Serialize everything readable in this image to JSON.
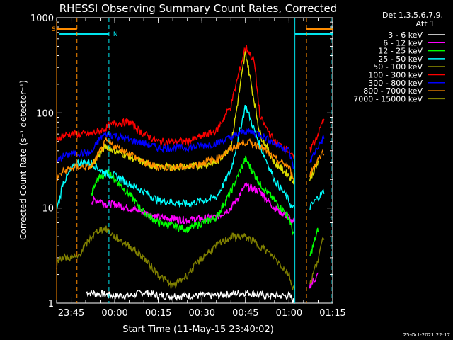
{
  "chart_data": {
    "type": "line",
    "title": "RHESSI Observing Summary Count Rates, Corrected",
    "xlabel": "Start Time (11-May-15 23:40:02)",
    "ylabel": "Corrected Count Rate (s⁻¹ detector⁻¹)",
    "yscale": "log",
    "ylim": [
      1,
      1000
    ],
    "xlim_minutes": [
      -20.0,
      75.0
    ],
    "x_ticks": [
      {
        "t": -15,
        "label": "23:45"
      },
      {
        "t": 0,
        "label": "00:00"
      },
      {
        "t": 15,
        "label": "00:15"
      },
      {
        "t": 30,
        "label": "00:30"
      },
      {
        "t": 45,
        "label": "00:45"
      },
      {
        "t": 60,
        "label": "01:00"
      },
      {
        "t": 75,
        "label": "01:15"
      }
    ],
    "y_ticks": [
      {
        "v": 1,
        "label": "1"
      },
      {
        "v": 10,
        "label": "10"
      },
      {
        "v": 100,
        "label": "100"
      },
      {
        "v": 1000,
        "label": "1000"
      }
    ],
    "legend_header": [
      "Det 1,3,5,6,7,9,",
      "Att 1"
    ],
    "annotations": {
      "saa_label": "S",
      "night_label": "N"
    },
    "saa_intervals": [
      [
        -20.0,
        -13.0
      ],
      [
        66.0,
        75.0
      ]
    ],
    "night_intervals": [
      [
        -19.0,
        -2.0
      ],
      [
        62.0,
        75.0
      ]
    ],
    "orange_markers": [
      -20.0,
      -13.0,
      66.0
    ],
    "cyan_markers": [
      -2.0,
      62.0,
      74.5
    ],
    "timestamp": "25-Oct-2021 22:17",
    "colors": {
      "orange": "#ff8c00",
      "cyan": "#00e5ee",
      "axis": "#ffffff"
    },
    "series": [
      {
        "name": "3 - 6 keV",
        "color": "#ffffff",
        "x": [
          -20,
          -13,
          -10,
          0,
          5,
          10,
          15,
          25,
          35,
          45,
          52,
          60,
          62,
          66,
          70,
          72,
          75
        ],
        "values": [
          0,
          0,
          1.3,
          1.2,
          1.2,
          1.3,
          1.2,
          1.2,
          1.2,
          1.3,
          1.2,
          1.2,
          1.0,
          0,
          0,
          0,
          0
        ]
      },
      {
        "name": "6 - 12 keV",
        "color": "#ff00ff",
        "x": [
          -8,
          -5,
          -3,
          0,
          5,
          10,
          15,
          25,
          35,
          40,
          45,
          50,
          55,
          60,
          61,
          62,
          66,
          67,
          70
        ],
        "values": [
          12,
          12,
          11,
          11,
          10,
          9,
          8,
          7.5,
          8,
          10,
          17,
          15,
          10,
          8,
          7,
          7,
          0,
          1.5,
          2
        ]
      },
      {
        "name": "12 - 25 keV",
        "color": "#00ff00",
        "x": [
          -8,
          -6,
          -4,
          -2,
          0,
          5,
          10,
          15,
          25,
          35,
          40,
          45,
          50,
          55,
          60,
          61,
          62,
          66,
          67,
          70
        ],
        "values": [
          14,
          20,
          22,
          24,
          20,
          14,
          9,
          7,
          6,
          8,
          15,
          33,
          18,
          12,
          8,
          6,
          5,
          0,
          3,
          6
        ]
      },
      {
        "name": "25 - 50 keV",
        "color": "#00ffff",
        "x": [
          -20,
          -19,
          -18,
          -15,
          -13,
          -8,
          -5,
          -3,
          0,
          5,
          10,
          15,
          25,
          35,
          40,
          45,
          50,
          55,
          60,
          61,
          62,
          66,
          67,
          70,
          72
        ],
        "values": [
          10,
          12,
          18,
          25,
          30,
          30,
          25,
          23,
          22,
          18,
          15,
          12,
          11,
          13,
          25,
          120,
          45,
          20,
          12,
          10,
          10,
          0,
          10,
          13,
          15
        ]
      },
      {
        "name": "50 - 100 keV",
        "color": "#dddd00",
        "x": [
          -8,
          -5,
          -3,
          0,
          5,
          10,
          15,
          25,
          35,
          40,
          45,
          50,
          55,
          60,
          61,
          62,
          66,
          67,
          70
        ],
        "values": [
          28,
          38,
          45,
          40,
          35,
          30,
          27,
          27,
          30,
          45,
          440,
          60,
          30,
          22,
          20,
          20,
          0,
          20,
          30
        ]
      },
      {
        "name": "100 - 300 keV",
        "color": "#ff0000",
        "x": [
          -20,
          -19,
          -18,
          -15,
          -13,
          -8,
          -5,
          -3,
          0,
          5,
          10,
          15,
          25,
          35,
          40,
          45,
          48,
          50,
          55,
          60,
          61,
          62,
          66,
          67,
          70,
          72
        ],
        "values": [
          50,
          55,
          58,
          60,
          60,
          60,
          65,
          70,
          78,
          80,
          60,
          50,
          50,
          65,
          120,
          500,
          350,
          90,
          50,
          40,
          35,
          33,
          0,
          40,
          60,
          90
        ]
      },
      {
        "name": "300 - 800 keV",
        "color": "#0000ff",
        "x": [
          -20,
          -19,
          -18,
          -15,
          -13,
          -8,
          -5,
          -3,
          0,
          5,
          10,
          15,
          25,
          35,
          40,
          45,
          50,
          55,
          60,
          61,
          62,
          66,
          67,
          70,
          72
        ],
        "values": [
          30,
          32,
          35,
          37,
          38,
          38,
          55,
          60,
          58,
          52,
          48,
          43,
          43,
          48,
          55,
          65,
          60,
          48,
          40,
          30,
          25,
          0,
          30,
          45,
          55
        ]
      },
      {
        "name": "800 - 7000 keV",
        "color": "#ff8c00",
        "x": [
          -20,
          -19,
          -18,
          -15,
          -13,
          -8,
          -5,
          -3,
          0,
          5,
          10,
          15,
          25,
          35,
          40,
          45,
          50,
          55,
          60,
          61,
          62,
          66,
          67,
          70,
          72
        ],
        "values": [
          20,
          22,
          24,
          26,
          27,
          27,
          40,
          50,
          45,
          38,
          30,
          27,
          27,
          33,
          42,
          50,
          45,
          33,
          27,
          22,
          22,
          0,
          22,
          33,
          40
        ]
      },
      {
        "name": "7000 - 15000 keV",
        "color": "#808000",
        "x": [
          -20,
          -19,
          -18,
          -13,
          -8,
          -5,
          -3,
          0,
          5,
          10,
          15,
          20,
          25,
          30,
          35,
          40,
          45,
          50,
          55,
          60,
          61,
          62,
          66,
          67,
          70,
          72
        ],
        "values": [
          2.5,
          3,
          3,
          3,
          5,
          6,
          6,
          5,
          4,
          3,
          2,
          1.5,
          2,
          3,
          4,
          5,
          5,
          4,
          3,
          2,
          1.5,
          1.5,
          0,
          1.5,
          3,
          5
        ]
      }
    ]
  }
}
